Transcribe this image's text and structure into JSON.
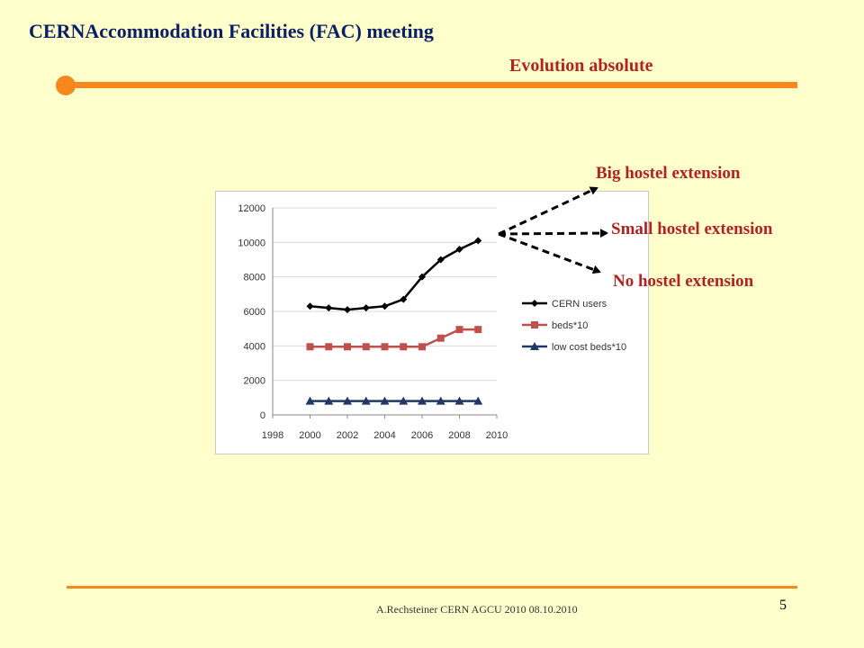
{
  "header": {
    "title": "CERNAccommodation Facilities (FAC) meeting",
    "subtitle": "Evolution absolute",
    "accent_color": "#f7861c"
  },
  "scenarios": [
    "Big hostel extension",
    "Small hostel extension",
    "No hostel extension"
  ],
  "footer": {
    "text": "A.Rechsteiner CERN AGCU 2010 08.10.2010",
    "page_number": "5"
  },
  "chart_data": {
    "type": "line",
    "x": [
      2000,
      2001,
      2002,
      2003,
      2004,
      2005,
      2006,
      2007,
      2008,
      2009
    ],
    "xlim": [
      1998,
      2010
    ],
    "ylim": [
      0,
      12000
    ],
    "xticks": [
      1998,
      2000,
      2002,
      2004,
      2006,
      2008,
      2010
    ],
    "yticks": [
      0,
      2000,
      4000,
      6000,
      8000,
      10000,
      12000
    ],
    "grid": "horizontal",
    "legend": "right",
    "series": [
      {
        "name": "CERN users",
        "color": "#000000",
        "marker": "diamond",
        "values": [
          6300,
          6200,
          6100,
          6200,
          6300,
          6700,
          8000,
          9000,
          9600,
          10100
        ]
      },
      {
        "name": "beds*10",
        "color": "#c0504d",
        "marker": "square",
        "values": [
          3950,
          3950,
          3950,
          3950,
          3950,
          3950,
          3950,
          4450,
          4950,
          4950
        ]
      },
      {
        "name": "low cost beds*10",
        "color": "#1f3864",
        "marker": "triangle",
        "values": [
          800,
          800,
          800,
          800,
          800,
          800,
          800,
          800,
          800,
          800
        ]
      }
    ]
  }
}
